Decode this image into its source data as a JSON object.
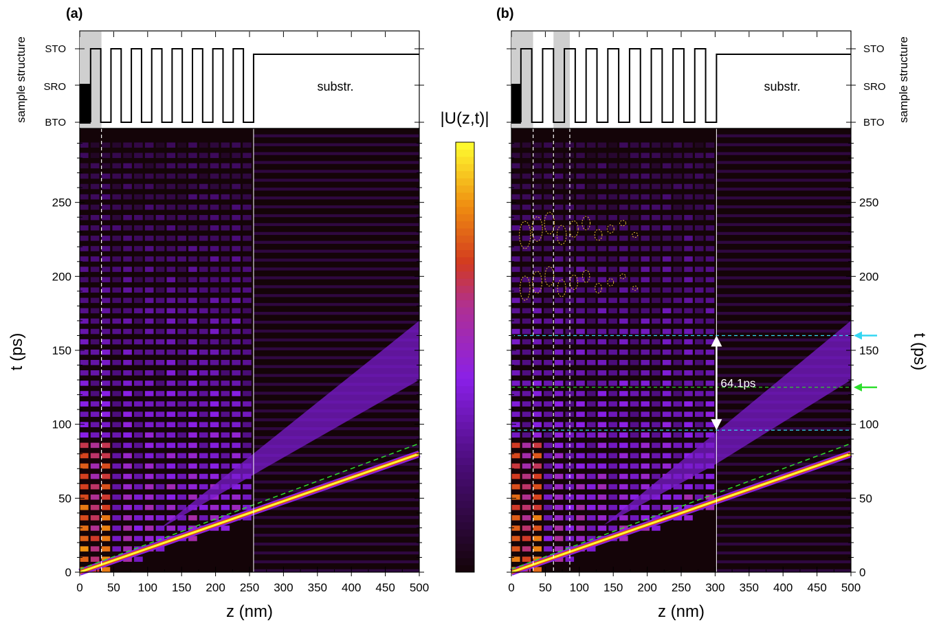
{
  "colors": {
    "map_low": "#140408",
    "map_mid": "#8a1fe0",
    "map_hot": "#d23a20",
    "map_peak": "#ffff30",
    "cyan_marker": "#33d6f2",
    "green_marker": "#2ede2e",
    "contour": "#e8c030",
    "shade": "#cfcfcf"
  },
  "colorbar": {
    "label": "|U(z,t)|"
  },
  "chart_data": [
    {
      "type": "heatmap",
      "panel_label": "(a)",
      "xlabel": "z (nm)",
      "ylabel": "t (ps)",
      "xlim": [
        0,
        500
      ],
      "ylim": [
        0,
        300
      ],
      "xticks": [
        "0",
        "50",
        "100",
        "150",
        "200",
        "250",
        "300",
        "350",
        "400",
        "450",
        "500"
      ],
      "yticks": [
        "0",
        "50",
        "100",
        "150",
        "200",
        "250"
      ],
      "structure": {
        "title": "sample structure",
        "levels": [
          "STO",
          "SRO",
          "BTO"
        ],
        "substrate_label": "substr.",
        "substrate_start_nm": 256,
        "sro_layer_nm": [
          0,
          16
        ],
        "shaded_regions_nm": [
          [
            0,
            32
          ]
        ]
      },
      "dashed_lines_nm": [
        32
      ],
      "interface_line_nm": 256,
      "diagonal_front": {
        "z": [
          0,
          500
        ],
        "t": [
          0,
          80
        ]
      },
      "marker_lines_ps": [],
      "arrow_annotation": null
    },
    {
      "type": "heatmap",
      "panel_label": "(b)",
      "xlabel": "z (nm)",
      "ylabel": "t (ps)",
      "xlim": [
        0,
        500
      ],
      "ylim": [
        0,
        300
      ],
      "xticks": [
        "0",
        "50",
        "100",
        "150",
        "200",
        "250",
        "300",
        "350",
        "400",
        "450",
        "500"
      ],
      "yticks": [
        "0",
        "50",
        "100",
        "150",
        "200",
        "250"
      ],
      "structure": {
        "title": "sample structure",
        "levels": [
          "STO",
          "SRO",
          "BTO"
        ],
        "substrate_label": "substr.",
        "substrate_start_nm": 302,
        "sro_layer_nm": [
          0,
          14
        ],
        "shaded_regions_nm": [
          [
            0,
            32
          ],
          [
            62,
            86
          ]
        ]
      },
      "dashed_lines_nm": [
        32,
        62,
        86
      ],
      "interface_line_nm": 302,
      "diagonal_front": {
        "z": [
          0,
          500
        ],
        "t": [
          0,
          80
        ]
      },
      "marker_lines_ps": [
        {
          "t": 160,
          "color": "cyan",
          "arrow": true
        },
        {
          "t": 125,
          "color": "green",
          "arrow": true
        },
        {
          "t": 96,
          "color": "cyan",
          "arrow": false
        }
      ],
      "arrow_annotation": {
        "z": 302,
        "t_from": 96,
        "t_to": 160,
        "label": "64.1ps"
      }
    }
  ]
}
